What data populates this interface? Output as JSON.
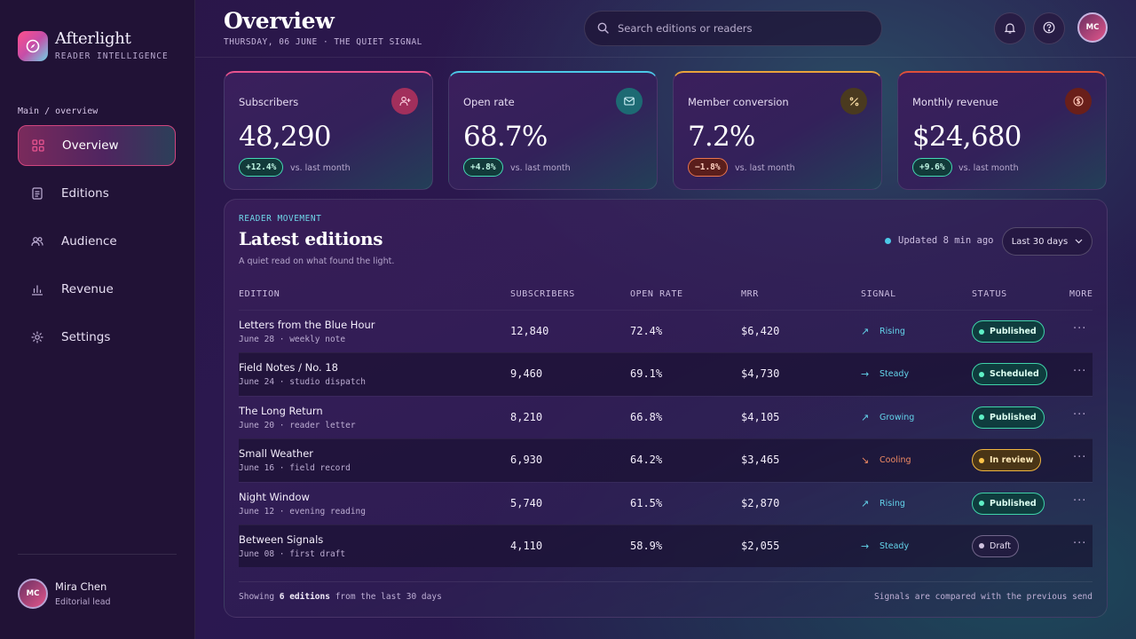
{
  "brand": {
    "name": "Afterlight",
    "tagline": "READER INTELLIGENCE"
  },
  "nav": {
    "crumb": "Main / overview",
    "items": [
      {
        "label": "Overview",
        "icon": "grid-icon",
        "active": true
      },
      {
        "label": "Editions",
        "icon": "document-icon",
        "active": false
      },
      {
        "label": "Audience",
        "icon": "users-icon",
        "active": false
      },
      {
        "label": "Revenue",
        "icon": "bar-chart-icon",
        "active": false
      },
      {
        "label": "Settings",
        "icon": "gear-icon",
        "active": false
      }
    ]
  },
  "user": {
    "initials": "MC",
    "name": "Mira Chen",
    "role": "Editorial lead"
  },
  "header": {
    "title": "Overview",
    "subtitle": "THURSDAY, 06 JUNE · THE QUIET SIGNAL",
    "search_placeholder": "Search editions or readers",
    "avatar_initials": "MC"
  },
  "kpis": [
    {
      "label": "Subscribers",
      "value": "48,290",
      "delta": "+12.4%",
      "direction": "up",
      "note": "vs. last month",
      "accent": "#e8538f",
      "icon": "user-plus-icon"
    },
    {
      "label": "Open rate",
      "value": "68.7%",
      "delta": "+4.8%",
      "direction": "up",
      "note": "vs. last month",
      "accent": "#4cc9e8",
      "icon": "mail-icon"
    },
    {
      "label": "Member conversion",
      "value": "7.2%",
      "delta": "−1.8%",
      "direction": "down",
      "note": "vs. last month",
      "accent": "#e9a23b",
      "icon": "percent-icon"
    },
    {
      "label": "Monthly revenue",
      "value": "$24,680",
      "delta": "+9.6%",
      "direction": "up",
      "note": "vs. last month",
      "accent": "#e0503a",
      "icon": "dollar-icon"
    }
  ],
  "panel": {
    "eyebrow": "READER MOVEMENT",
    "title": "Latest editions",
    "description": "A quiet read on what found the light.",
    "updated": "Updated 8 min ago",
    "range": "Last 30 days",
    "columns": [
      "EDITION",
      "SUBSCRIBERS",
      "OPEN RATE",
      "MRR",
      "SIGNAL",
      "STATUS",
      "MORE"
    ],
    "rows": [
      {
        "title": "Letters from the Blue Hour",
        "meta": "June 28 · weekly note",
        "subscribers": "12,840",
        "open_rate": "72.4%",
        "mrr": "$6,420",
        "signal": "Rising",
        "signal_dir": "up",
        "status": "Published",
        "status_kind": "published"
      },
      {
        "title": "Field Notes / No. 18",
        "meta": "June 24 · studio dispatch",
        "subscribers": "9,460",
        "open_rate": "69.1%",
        "mrr": "$4,730",
        "signal": "Steady",
        "signal_dir": "flat",
        "status": "Scheduled",
        "status_kind": "scheduled"
      },
      {
        "title": "The Long Return",
        "meta": "June 20 · reader letter",
        "subscribers": "8,210",
        "open_rate": "66.8%",
        "mrr": "$4,105",
        "signal": "Growing",
        "signal_dir": "up",
        "status": "Published",
        "status_kind": "published"
      },
      {
        "title": "Small Weather",
        "meta": "June 16 · field record",
        "subscribers": "6,930",
        "open_rate": "64.2%",
        "mrr": "$3,465",
        "signal": "Cooling",
        "signal_dir": "down",
        "status": "In review",
        "status_kind": "review"
      },
      {
        "title": "Night Window",
        "meta": "June 12 · evening reading",
        "subscribers": "5,740",
        "open_rate": "61.5%",
        "mrr": "$2,870",
        "signal": "Rising",
        "signal_dir": "up",
        "status": "Published",
        "status_kind": "published"
      },
      {
        "title": "Between Signals",
        "meta": "June 08 · first draft",
        "subscribers": "4,110",
        "open_rate": "58.9%",
        "mrr": "$2,055",
        "signal": "Steady",
        "signal_dir": "flat",
        "status": "Draft",
        "status_kind": "draft"
      }
    ],
    "footer_prefix": "Showing ",
    "footer_count": "6 editions",
    "footer_suffix": " from the last 30 days",
    "footer_right": "Signals are compared with the previous send"
  },
  "colors": {
    "signal_up": "#63d3ea",
    "signal_flat": "#63d3ea",
    "signal_down": "#f08a63"
  }
}
